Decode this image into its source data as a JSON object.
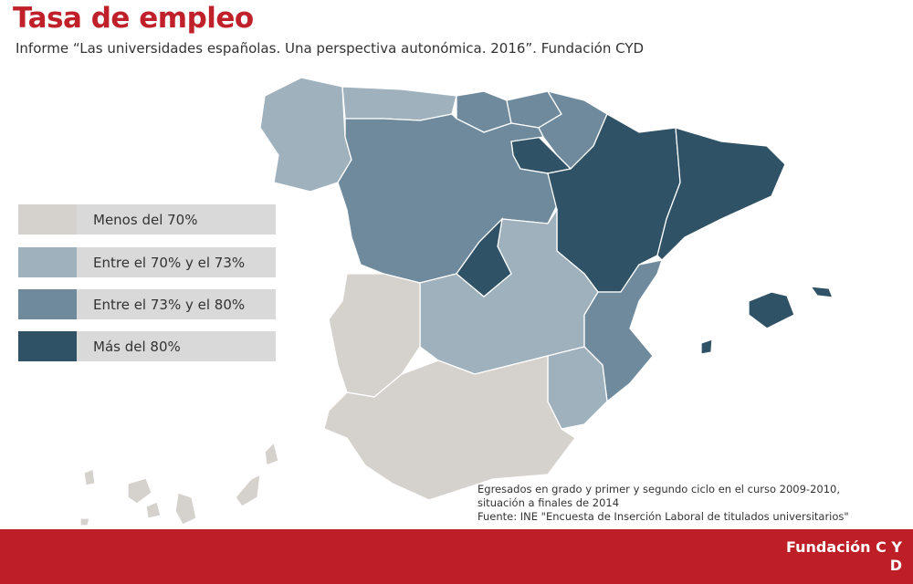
{
  "title": "Tasa de empleo",
  "subtitle": "Informe “Las universidades españolas. Una perspectiva autonómica. 2016”. Fundación CYD",
  "colors": {
    "menos70": "#d5d1cd",
    "70a73": "#9eb1bd",
    "73a80": "#6e8a9c",
    "mas80": "#2f5266",
    "brand": "#be1e25"
  },
  "legend": [
    {
      "label": "Menos del 70%",
      "cat": "menos70"
    },
    {
      "label": "Entre el 70% y el 73%",
      "cat": "70a73"
    },
    {
      "label": "Entre el 73% y el  80%",
      "cat": "73a80"
    },
    {
      "label": "Más del 80%",
      "cat": "mas80"
    }
  ],
  "regions": [
    {
      "name": "Galicia",
      "cat": "70a73"
    },
    {
      "name": "Asturias",
      "cat": "70a73"
    },
    {
      "name": "Cantabria",
      "cat": "73a80"
    },
    {
      "name": "País Vasco",
      "cat": "73a80"
    },
    {
      "name": "Navarra",
      "cat": "73a80"
    },
    {
      "name": "La Rioja",
      "cat": "mas80"
    },
    {
      "name": "Castilla y León",
      "cat": "73a80"
    },
    {
      "name": "Aragón",
      "cat": "mas80"
    },
    {
      "name": "Cataluña",
      "cat": "mas80"
    },
    {
      "name": "Madrid",
      "cat": "mas80"
    },
    {
      "name": "Castilla-La Mancha",
      "cat": "70a73"
    },
    {
      "name": "Extremadura",
      "cat": "menos70"
    },
    {
      "name": "Comunidad Valenciana",
      "cat": "73a80"
    },
    {
      "name": "Murcia",
      "cat": "70a73"
    },
    {
      "name": "Andalucía",
      "cat": "menos70"
    },
    {
      "name": "Baleares",
      "cat": "mas80"
    },
    {
      "name": "Canarias",
      "cat": "menos70"
    }
  ],
  "note": [
    "Egresados en grado y primer y segundo ciclo en el curso 2009-2010,",
    "situación a finales de 2014",
    "Fuente: INE \"Encuesta de Inserción Laboral de titulados universitarios\""
  ],
  "footer": {
    "brand_line1": "Fundación C Y",
    "brand_line2": "D"
  }
}
